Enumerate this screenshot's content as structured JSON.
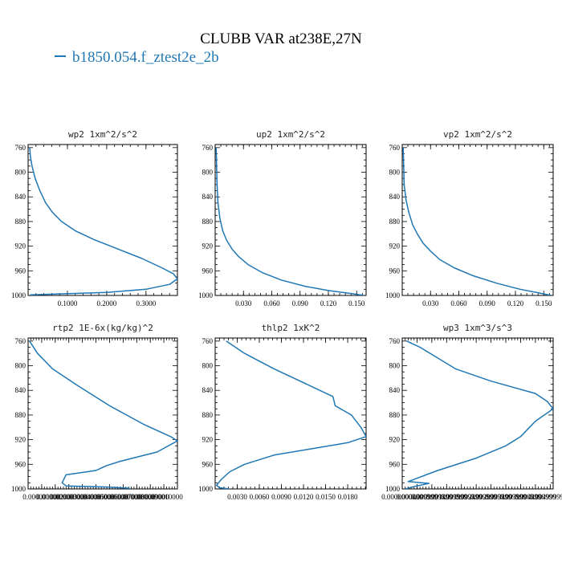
{
  "figure": {
    "title": "CLUBB VAR at238E,27N",
    "legend": {
      "label": "b1850.054.f_ztest2e_2b",
      "color": "#1f77b4"
    }
  },
  "chart_data": [
    {
      "type": "line",
      "title": "wp2  1xm^2/s^2",
      "ylim": [
        1000,
        755
      ],
      "xlim": [
        0,
        0.38
      ],
      "x_ticks": [
        0.1,
        0.2,
        0.3
      ],
      "x_tick_labels": [
        "0.1000",
        "0.2000",
        "0.3000"
      ],
      "y_ticks": [
        760,
        800,
        840,
        880,
        920,
        960,
        1000
      ],
      "series": [
        {
          "x": [
            0.004,
            0.006,
            0.01,
            0.018,
            0.03,
            0.045,
            0.062,
            0.085,
            0.12,
            0.17,
            0.23,
            0.29,
            0.34,
            0.37,
            0.38,
            0.36,
            0.3,
            0.2,
            0.005
          ],
          "y": [
            760,
            775,
            790,
            810,
            830,
            850,
            865,
            880,
            895,
            910,
            925,
            940,
            955,
            965,
            973,
            982,
            990,
            995,
            999
          ]
        }
      ]
    },
    {
      "type": "line",
      "title": "up2  1xm^2/s^2",
      "ylim": [
        1000,
        755
      ],
      "xlim": [
        0,
        0.16
      ],
      "x_ticks": [
        0.03,
        0.06,
        0.09,
        0.12,
        0.15
      ],
      "x_tick_labels": [
        "0.030",
        "0.060",
        "0.090",
        "0.120",
        "0.150"
      ],
      "y_ticks": [
        760,
        800,
        840,
        880,
        920,
        960,
        1000
      ],
      "series": [
        {
          "x": [
            0.001,
            0.0015,
            0.002,
            0.003,
            0.005,
            0.008,
            0.012,
            0.018,
            0.025,
            0.035,
            0.05,
            0.07,
            0.095,
            0.12,
            0.145,
            0.158
          ],
          "y": [
            760,
            790,
            820,
            850,
            875,
            895,
            910,
            925,
            937,
            950,
            963,
            975,
            985,
            992,
            997,
            1000
          ]
        }
      ]
    },
    {
      "type": "line",
      "title": "vp2  1xm^2/s^2",
      "ylim": [
        1000,
        755
      ],
      "xlim": [
        0,
        0.16
      ],
      "x_ticks": [
        0.03,
        0.06,
        0.09,
        0.12,
        0.15
      ],
      "x_tick_labels": [
        "0.030",
        "0.060",
        "0.090",
        "0.120",
        "0.150"
      ],
      "y_ticks": [
        760,
        800,
        840,
        880,
        920,
        960,
        1000
      ],
      "series": [
        {
          "x": [
            0.001,
            0.0015,
            0.002,
            0.004,
            0.007,
            0.011,
            0.016,
            0.022,
            0.03,
            0.04,
            0.055,
            0.075,
            0.1,
            0.125,
            0.145,
            0.158
          ],
          "y": [
            760,
            790,
            820,
            845,
            865,
            885,
            900,
            915,
            928,
            942,
            955,
            968,
            980,
            990,
            996,
            1000
          ]
        }
      ]
    },
    {
      "type": "line",
      "title": "rtp2  1E-6x(kg/kg)^2",
      "ylim": [
        1000,
        755
      ],
      "xlim": [
        0,
        1.1e-05
      ],
      "x_ticks": [
        1e-06,
        2e-06,
        3e-06,
        4e-06,
        5e-06,
        6e-06,
        7e-06,
        8e-06,
        9e-06,
        1e-05
      ],
      "x_tick_labels": [
        "0.000001000",
        "0.000002000",
        "0.000003000",
        "0.000004000",
        "0.000005000",
        "0.000006000",
        "0.000007000",
        "0.000008000",
        "0.000009000",
        "0.000010000"
      ],
      "y_ticks": [
        760,
        800,
        840,
        880,
        920,
        960,
        1000
      ],
      "series": [
        {
          "x": [
            1e-07,
            7e-07,
            1.8e-06,
            3.5e-06,
            6e-06,
            8.5e-06,
            1.05e-05,
            1.1e-05,
            9.5e-06,
            6.8e-06,
            5.8e-06,
            5e-06,
            2.8e-06,
            2.5e-06,
            2.8e-06,
            6e-06,
            7.5e-06
          ],
          "y": [
            760,
            780,
            805,
            830,
            865,
            895,
            915,
            922,
            940,
            955,
            962,
            970,
            977,
            990,
            995,
            997,
            999
          ]
        }
      ]
    },
    {
      "type": "line",
      "title": "thlp2  1xK^2",
      "ylim": [
        1000,
        755
      ],
      "xlim": [
        0,
        0.0205
      ],
      "x_ticks": [
        0.003,
        0.006,
        0.009,
        0.012,
        0.015,
        0.018
      ],
      "x_tick_labels": [
        "0.0030",
        "0.0060",
        "0.0090",
        "0.0120",
        "0.0150",
        "0.0180"
      ],
      "y_ticks": [
        760,
        800,
        840,
        880,
        920,
        960,
        1000
      ],
      "series": [
        {
          "x": [
            0.0015,
            0.004,
            0.008,
            0.016,
            0.0163,
            0.0185,
            0.0198,
            0.0205,
            0.018,
            0.013,
            0.008,
            0.004,
            0.002,
            0.0008,
            0.0002,
            0.0006,
            0.002
          ],
          "y": [
            760,
            780,
            805,
            850,
            865,
            880,
            900,
            915,
            925,
            935,
            945,
            960,
            972,
            985,
            994,
            998,
            1000
          ]
        }
      ]
    },
    {
      "type": "line",
      "title": "wp3  1xm^3/s^3",
      "ylim": [
        1000,
        755
      ],
      "xlim": [
        0,
        0.0051
      ],
      "x_ticks": [
        0.0,
        0.0005,
        0.001,
        0.0015,
        0.002,
        0.0025,
        0.003,
        0.0035,
        0.004,
        0.0045,
        0.005
      ],
      "x_tick_labels": [
        "0.0000000000",
        "0.0004999999",
        "0.0009999999",
        "0.0014999999",
        "0.0019999999",
        "0.0024999999",
        "0.0029999999",
        "0.0034999999",
        "0.0039999999",
        "0.0044999999",
        "0.0049999999"
      ],
      "y_ticks": [
        760,
        800,
        840,
        880,
        920,
        960,
        1000
      ],
      "series": [
        {
          "x": [
            0.00015,
            0.0006,
            0.0018,
            0.003,
            0.0045,
            0.0049,
            0.0051,
            0.0045,
            0.0043,
            0.004,
            0.0035,
            0.0025,
            0.0012,
            0.0002,
            0.0009,
            0.0005,
            0.0001
          ],
          "y": [
            760,
            770,
            805,
            825,
            845,
            858,
            870,
            890,
            900,
            915,
            930,
            950,
            970,
            988,
            991,
            995,
            1000
          ]
        }
      ]
    }
  ]
}
